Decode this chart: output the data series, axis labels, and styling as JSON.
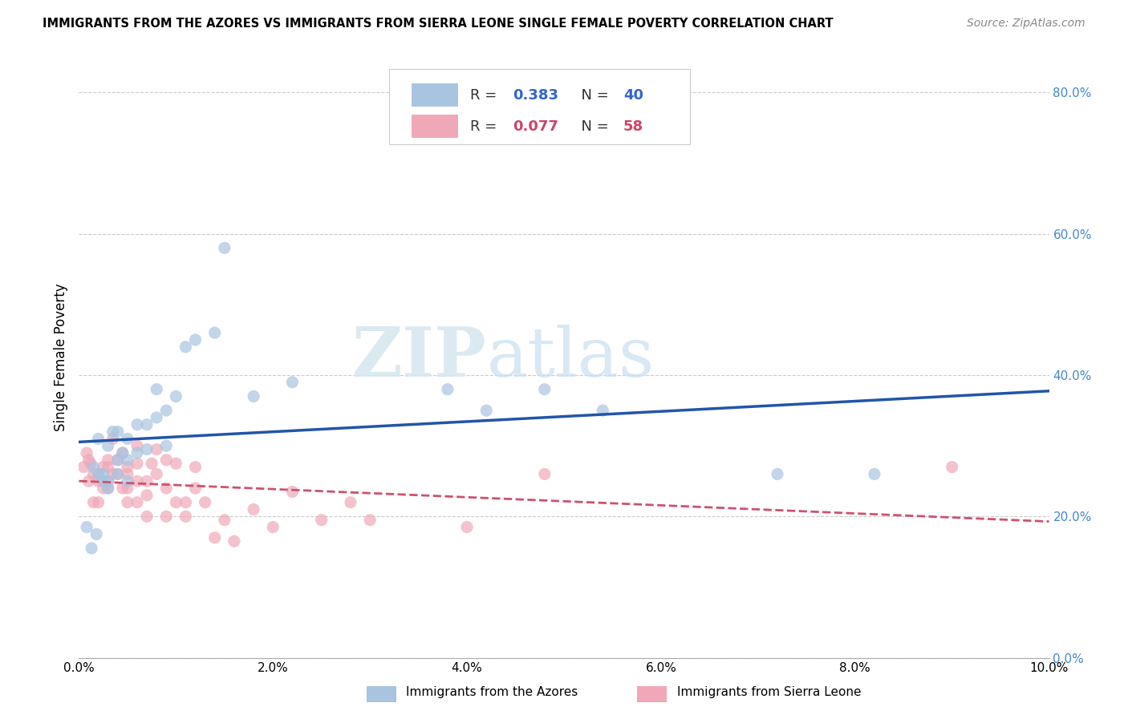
{
  "title": "IMMIGRANTS FROM THE AZORES VS IMMIGRANTS FROM SIERRA LEONE SINGLE FEMALE POVERTY CORRELATION CHART",
  "source": "Source: ZipAtlas.com",
  "ylabel": "Single Female Poverty",
  "xlim": [
    0.0,
    0.1
  ],
  "ylim": [
    0.0,
    0.85
  ],
  "x_ticks": [
    0.0,
    0.02,
    0.04,
    0.06,
    0.08,
    0.1
  ],
  "x_tick_labels": [
    "0.0%",
    "2.0%",
    "4.0%",
    "6.0%",
    "8.0%",
    "10.0%"
  ],
  "y_ticks_right": [
    0.0,
    0.2,
    0.4,
    0.6,
    0.8
  ],
  "y_tick_labels_right": [
    "0.0%",
    "20.0%",
    "40.0%",
    "60.0%",
    "80.0%"
  ],
  "azores_color": "#a8c4e0",
  "sierra_color": "#f0a8b8",
  "azores_line_color": "#2255aa",
  "sierra_line_color": "#d05070",
  "R_azores": 0.383,
  "N_azores": 40,
  "R_sierra": 0.077,
  "N_sierra": 58,
  "legend_label_azores": "Immigrants from the Azores",
  "legend_label_sierra": "Immigrants from Sierra Leone",
  "watermark_zip": "ZIP",
  "watermark_atlas": "atlas",
  "azores_x": [
    0.0008,
    0.0013,
    0.0015,
    0.0018,
    0.002,
    0.002,
    0.0025,
    0.0025,
    0.003,
    0.003,
    0.003,
    0.0035,
    0.004,
    0.004,
    0.004,
    0.0045,
    0.005,
    0.005,
    0.005,
    0.006,
    0.006,
    0.007,
    0.007,
    0.008,
    0.008,
    0.009,
    0.009,
    0.01,
    0.011,
    0.012,
    0.014,
    0.015,
    0.018,
    0.022,
    0.038,
    0.042,
    0.048,
    0.054,
    0.072,
    0.082
  ],
  "azores_y": [
    0.185,
    0.155,
    0.27,
    0.175,
    0.26,
    0.31,
    0.25,
    0.26,
    0.24,
    0.3,
    0.25,
    0.32,
    0.26,
    0.28,
    0.32,
    0.29,
    0.28,
    0.31,
    0.25,
    0.33,
    0.29,
    0.33,
    0.295,
    0.34,
    0.38,
    0.3,
    0.35,
    0.37,
    0.44,
    0.45,
    0.46,
    0.58,
    0.37,
    0.39,
    0.38,
    0.35,
    0.38,
    0.35,
    0.26,
    0.26
  ],
  "sierra_x": [
    0.0005,
    0.0008,
    0.001,
    0.001,
    0.0012,
    0.0015,
    0.0015,
    0.002,
    0.002,
    0.002,
    0.0025,
    0.0025,
    0.003,
    0.003,
    0.003,
    0.003,
    0.0035,
    0.0035,
    0.004,
    0.004,
    0.0045,
    0.0045,
    0.005,
    0.005,
    0.005,
    0.005,
    0.006,
    0.006,
    0.006,
    0.006,
    0.007,
    0.007,
    0.007,
    0.0075,
    0.008,
    0.008,
    0.009,
    0.009,
    0.009,
    0.01,
    0.01,
    0.011,
    0.011,
    0.012,
    0.012,
    0.013,
    0.014,
    0.015,
    0.016,
    0.018,
    0.02,
    0.022,
    0.025,
    0.028,
    0.03,
    0.04,
    0.048,
    0.09
  ],
  "sierra_y": [
    0.27,
    0.29,
    0.25,
    0.28,
    0.275,
    0.22,
    0.26,
    0.26,
    0.22,
    0.25,
    0.27,
    0.24,
    0.25,
    0.27,
    0.24,
    0.28,
    0.26,
    0.31,
    0.28,
    0.26,
    0.24,
    0.29,
    0.26,
    0.24,
    0.22,
    0.27,
    0.25,
    0.22,
    0.275,
    0.3,
    0.25,
    0.23,
    0.2,
    0.275,
    0.26,
    0.295,
    0.2,
    0.24,
    0.28,
    0.22,
    0.275,
    0.22,
    0.2,
    0.24,
    0.27,
    0.22,
    0.17,
    0.195,
    0.165,
    0.21,
    0.185,
    0.235,
    0.195,
    0.22,
    0.195,
    0.185,
    0.26,
    0.27
  ]
}
